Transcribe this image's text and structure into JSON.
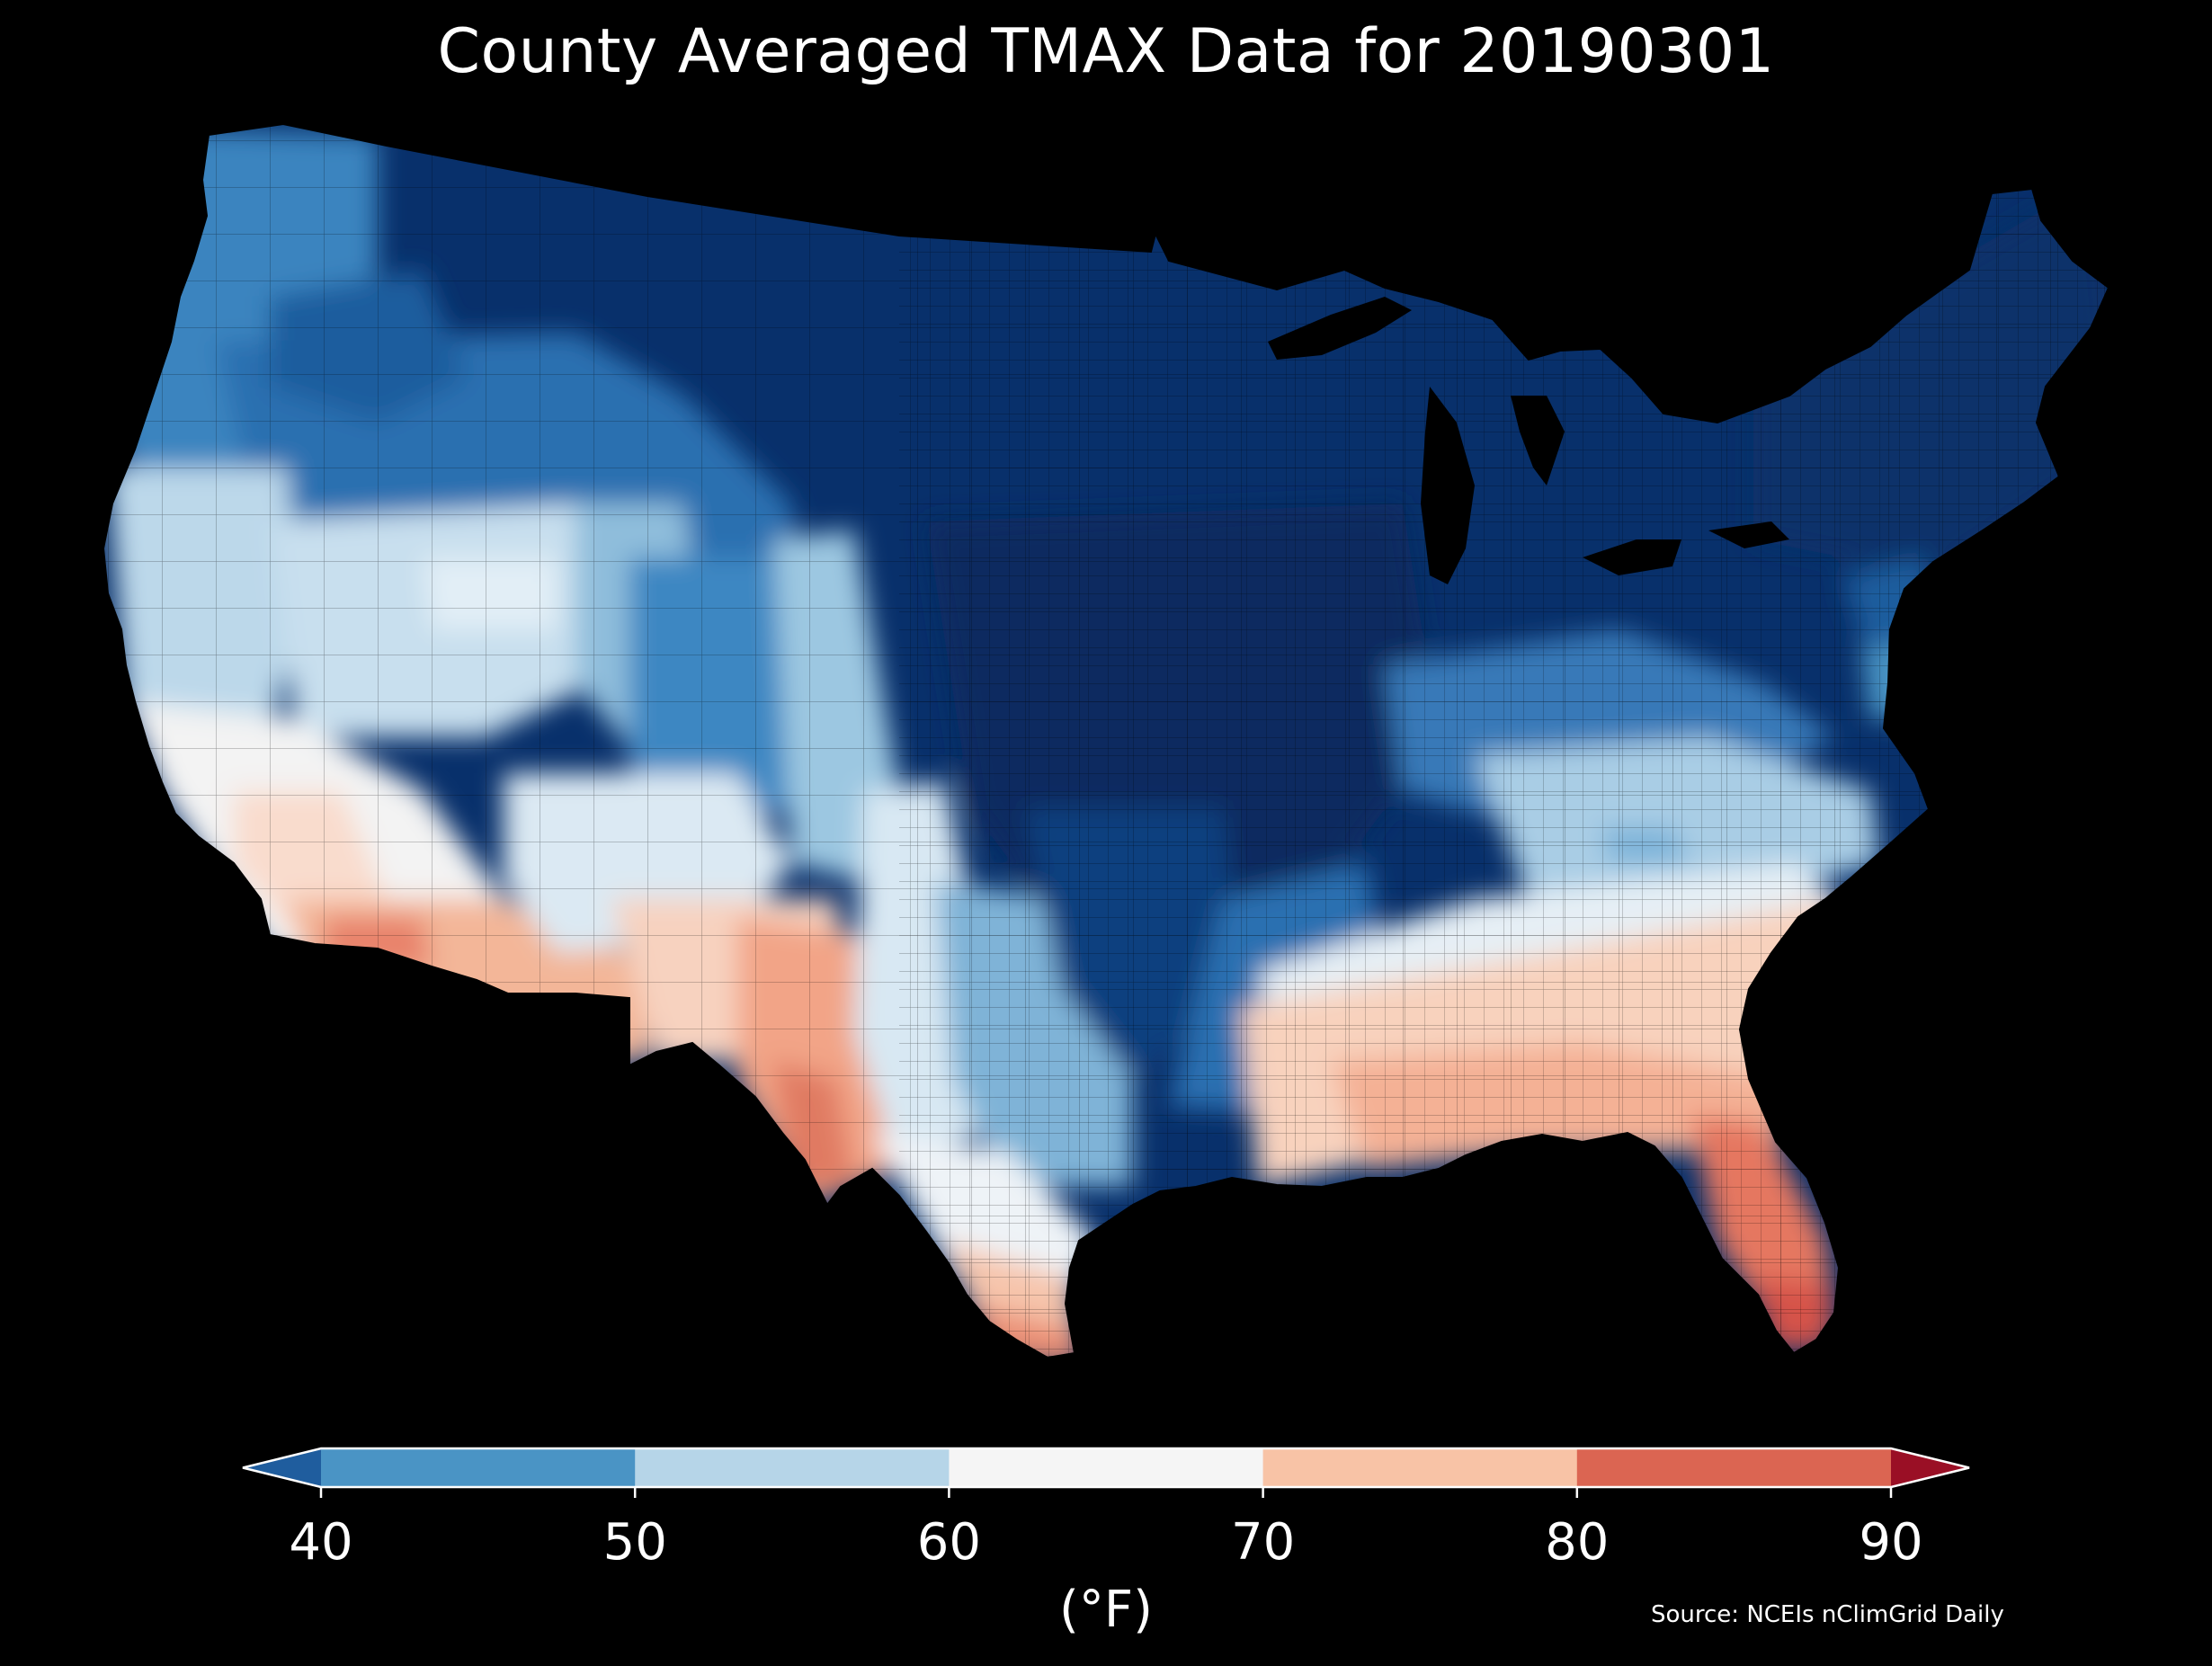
{
  "title": "County Averaged TMAX Data for 20190301",
  "colorbar": {
    "unit_label": "(°F)",
    "ticks": [
      "40",
      "50",
      "60",
      "70",
      "80",
      "90"
    ],
    "bins": [
      {
        "range": "<40",
        "color": "#1f5d9e"
      },
      {
        "range": "40-50",
        "color": "#4a94c5"
      },
      {
        "range": "50-60",
        "color": "#b6d5e8"
      },
      {
        "range": "60-70",
        "color": "#f5f5f5"
      },
      {
        "range": "70-80",
        "color": "#f8c3a6"
      },
      {
        "range": "80-90",
        "color": "#db6552"
      },
      {
        "range": ">90",
        "color": "#9a0f25"
      }
    ]
  },
  "source": "Source: NCEIs nClimGrid Daily",
  "map": {
    "region": "Contiguous United States (county level)",
    "background": "#000000",
    "palette": [
      "#08306b",
      "#1f5d9e",
      "#4a94c5",
      "#b6d5e8",
      "#f5f5f5",
      "#f8c3a6",
      "#db6552"
    ]
  }
}
